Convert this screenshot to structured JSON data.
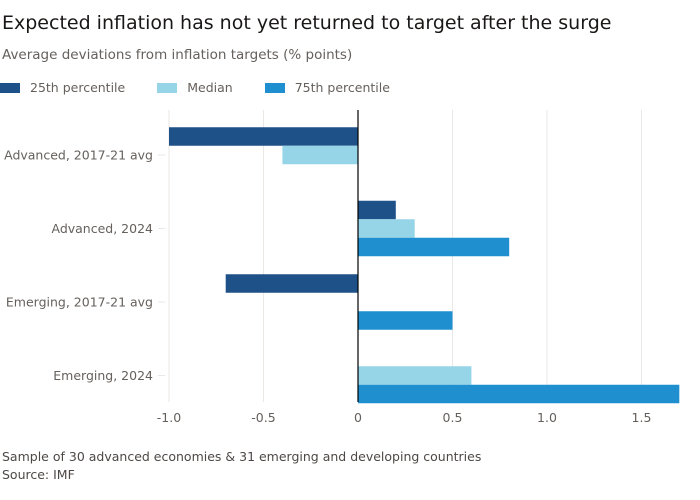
{
  "title": "Expected inflation has not yet returned to target after the surge",
  "subtitle": "Average deviations from inflation targets (% points)",
  "footnote": "Sample of 30 advanced economies & 31 emerging and developing countries",
  "source": "Source: IMF",
  "chart_data": {
    "type": "bar",
    "orientation": "horizontal",
    "categories": [
      "Advanced, 2017-21 avg",
      "Advanced, 2024",
      "Emerging, 2017-21 avg",
      "Emerging, 2024"
    ],
    "series": [
      {
        "name": "25th percentile",
        "color": "#1f5189",
        "values": [
          -1.0,
          0.2,
          -0.7,
          0
        ]
      },
      {
        "name": "Median",
        "color": "#96d4e8",
        "values": [
          -0.4,
          0.3,
          0,
          0.6
        ]
      },
      {
        "name": "75th percentile",
        "color": "#1f8fcf",
        "values": [
          0,
          0.8,
          0.5,
          1.7
        ]
      }
    ],
    "xlim": [
      -1.05,
      1.7
    ],
    "xticks": [
      "-1.0",
      "-0.5",
      "0",
      "0.5",
      "1.0",
      "1.5"
    ],
    "grid": true,
    "legend": "top-left"
  }
}
